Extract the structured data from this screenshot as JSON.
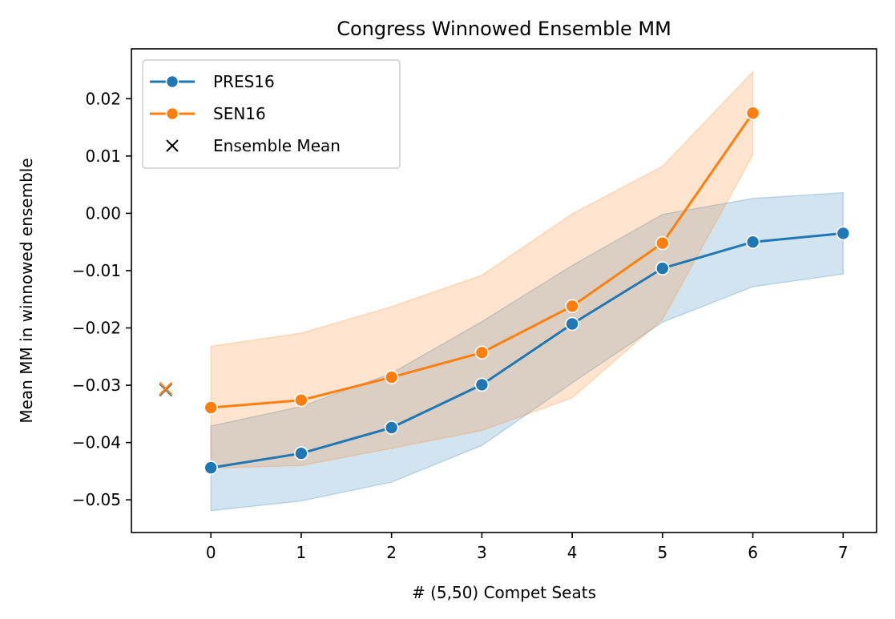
{
  "chart_data": {
    "type": "line",
    "title": "Congress Winnowed Ensemble MM",
    "xlabel": "# (5,50) Compet Seats",
    "ylabel": "Mean MM in winnowed ensemble",
    "xlim": [
      -0.88,
      7.37
    ],
    "ylim": [
      -0.0557,
      0.0287
    ],
    "x_ticks": [
      0,
      1,
      2,
      3,
      4,
      5,
      6,
      7
    ],
    "x_tick_labels": [
      "0",
      "1",
      "2",
      "3",
      "4",
      "5",
      "6",
      "7"
    ],
    "y_ticks": [
      -0.05,
      -0.04,
      -0.03,
      -0.02,
      -0.01,
      0.0,
      0.01,
      0.02
    ],
    "y_tick_labels": [
      "−0.05",
      "−0.04",
      "−0.03",
      "−0.02",
      "−0.01",
      "0.00",
      "0.01",
      "0.02"
    ],
    "grid": false,
    "legend_position": "top-left",
    "series": [
      {
        "name": "PRES16",
        "color": "#1f77b4",
        "x": [
          0,
          1,
          2,
          3,
          4,
          5,
          6,
          7
        ],
        "y": [
          -0.0444,
          -0.0419,
          -0.0374,
          -0.0299,
          -0.0193,
          -0.0096,
          -0.005,
          -0.0035
        ],
        "band_lower": [
          -0.0519,
          -0.0502,
          -0.0469,
          -0.0405,
          -0.0296,
          -0.019,
          -0.0128,
          -0.0106
        ],
        "band_upper": [
          -0.0371,
          -0.0337,
          -0.0279,
          -0.0189,
          -0.0091,
          -0.0002,
          0.0026,
          0.0036
        ]
      },
      {
        "name": "SEN16",
        "color": "#ff7f0e",
        "x": [
          0,
          1,
          2,
          3,
          4,
          5,
          6
        ],
        "y": [
          -0.0339,
          -0.0326,
          -0.0286,
          -0.0243,
          -0.0162,
          -0.0052,
          0.0175
        ],
        "band_lower": [
          -0.0445,
          -0.044,
          -0.041,
          -0.0379,
          -0.0322,
          -0.0185,
          0.0102
        ],
        "band_upper": [
          -0.0232,
          -0.0209,
          -0.0163,
          -0.0108,
          -0.0001,
          0.0082,
          0.0247
        ]
      }
    ],
    "ensemble_mean": {
      "name": "Ensemble Mean",
      "marker": "x",
      "x": -0.5,
      "points": [
        {
          "series": "PRES16",
          "y": -0.0308,
          "color": "#1f77b4"
        },
        {
          "series": "SEN16",
          "y": -0.0306,
          "color": "#ff7f0e"
        }
      ]
    }
  }
}
